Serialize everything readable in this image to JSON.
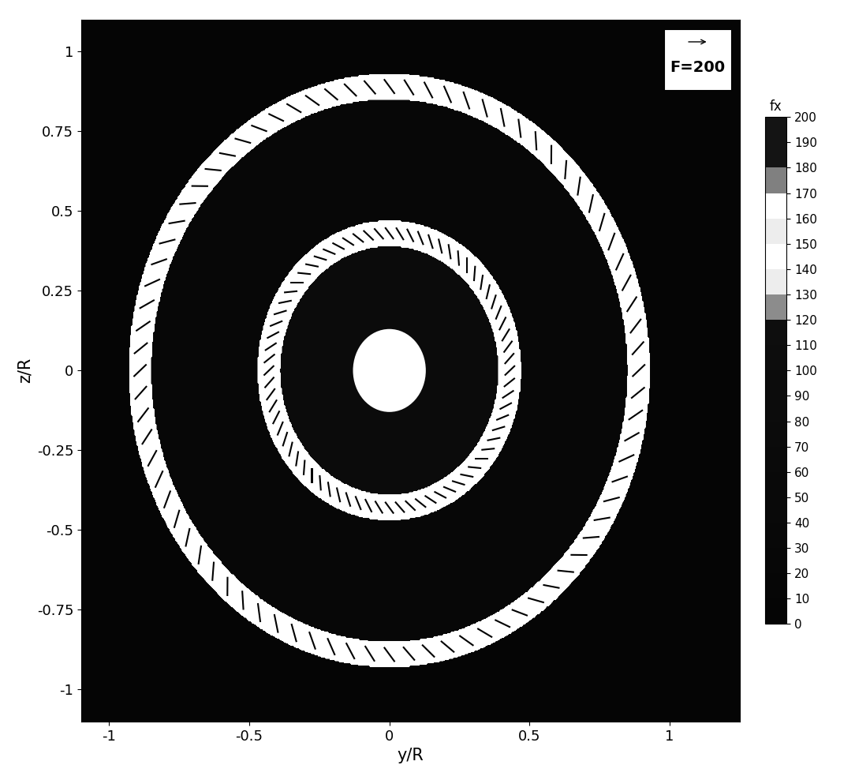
{
  "chart_data": {
    "type": "contour",
    "xlabel": "y/R",
    "ylabel": "z/R",
    "xlim": [
      -1.1,
      1.25
    ],
    "ylim": [
      -1.1,
      1.1
    ],
    "xticks": [
      -1,
      -0.5,
      0,
      0.5,
      1
    ],
    "yticks": [
      -1,
      -0.75,
      -0.5,
      -0.25,
      0,
      0.25,
      0.5,
      0.75,
      1
    ],
    "colorbar": {
      "title": "fx",
      "range": [
        0,
        200
      ],
      "ticks": [
        0,
        10,
        20,
        30,
        40,
        50,
        60,
        70,
        80,
        90,
        100,
        110,
        120,
        130,
        140,
        150,
        160,
        170,
        180,
        190,
        200
      ]
    },
    "background_fx": 0,
    "regions": [
      {
        "r_inner": 0.13,
        "r_outer": 0.39,
        "fx": 80
      },
      {
        "r_inner": 0.39,
        "r_outer": 0.47,
        "fx": 150
      },
      {
        "r_inner": 0.47,
        "r_outer": 0.85,
        "fx": 30
      },
      {
        "r_inner": 0.85,
        "r_outer": 0.93,
        "fx": 150
      }
    ],
    "hub_radius": 0.13,
    "vectors": [
      {
        "radius": 0.43,
        "count": 72,
        "magnitude": 120
      },
      {
        "radius": 0.89,
        "count": 80,
        "magnitude": 150
      }
    ],
    "reference_vector": {
      "label": "F=200",
      "magnitude": 200
    }
  }
}
